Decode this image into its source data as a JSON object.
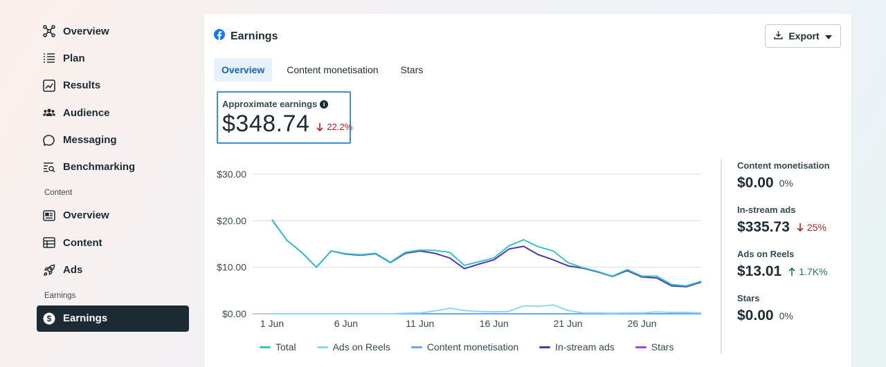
{
  "sidebar": {
    "items_top": [
      {
        "label": "Overview",
        "icon": "overview-network-icon"
      },
      {
        "label": "Plan",
        "icon": "list-icon"
      },
      {
        "label": "Results",
        "icon": "trend-chart-icon"
      },
      {
        "label": "Audience",
        "icon": "people-icon"
      },
      {
        "label": "Messaging",
        "icon": "chat-bubbles-icon"
      },
      {
        "label": "Benchmarking",
        "icon": "benchmark-search-icon"
      }
    ],
    "content_section": "Content",
    "items_content": [
      {
        "label": "Overview",
        "icon": "newspaper-icon"
      },
      {
        "label": "Content",
        "icon": "table-icon"
      },
      {
        "label": "Ads",
        "icon": "rocket-icon"
      }
    ],
    "earnings_section": "Earnings",
    "active_item": {
      "label": "Earnings",
      "icon": "dollar-circle-icon"
    }
  },
  "card": {
    "title": "Earnings",
    "title_icon": "facebook-icon",
    "export_label": "Export",
    "tabs": [
      {
        "label": "Overview",
        "active": true
      },
      {
        "label": "Content monetisation",
        "active": false
      },
      {
        "label": "Stars",
        "active": false
      }
    ],
    "kpi": {
      "label": "Approximate earnings",
      "value": "$348.74",
      "delta": "22.2%",
      "direction": "down"
    }
  },
  "breakdown": [
    {
      "name": "Content monetisation",
      "amount": "$0.00",
      "pct": "0%",
      "direction": "none"
    },
    {
      "name": "In-stream ads",
      "amount": "$335.73",
      "pct": "25%",
      "direction": "down"
    },
    {
      "name": "Ads on Reels",
      "amount": "$13.01",
      "pct": "1.7K%",
      "direction": "up"
    },
    {
      "name": "Stars",
      "amount": "$0.00",
      "pct": "0%",
      "direction": "none"
    }
  ],
  "colors": {
    "total": "#36c3c6",
    "ads_on_reels": "#8fd6f2",
    "content_monetisation": "#6aa5ee",
    "in_stream_ads": "#4b3aa8",
    "stars": "#a443e0",
    "down": "#b11f1f",
    "up": "#1a7a4c",
    "active_nav": "#1c2b33"
  },
  "chart_data": {
    "type": "line",
    "x_tick_labels": [
      "1 Jun",
      "6 Jun",
      "11 Jun",
      "16 Jun",
      "21 Jun",
      "26 Jun"
    ],
    "y_tick_labels": [
      "$30.00",
      "$20.00",
      "$10.00",
      "$0.00"
    ],
    "ylim": [
      0,
      30
    ],
    "x": [
      "1 Jun",
      "2 Jun",
      "3 Jun",
      "4 Jun",
      "5 Jun",
      "6 Jun",
      "7 Jun",
      "8 Jun",
      "9 Jun",
      "10 Jun",
      "11 Jun",
      "12 Jun",
      "13 Jun",
      "14 Jun",
      "15 Jun",
      "16 Jun",
      "17 Jun",
      "18 Jun",
      "19 Jun",
      "20 Jun",
      "21 Jun",
      "22 Jun",
      "23 Jun",
      "24 Jun",
      "25 Jun",
      "26 Jun",
      "27 Jun",
      "28 Jun",
      "29 Jun",
      "30 Jun"
    ],
    "grid": true,
    "legend": "bottom",
    "series": [
      {
        "name": "Total",
        "color_key": "total",
        "values": [
          20.2,
          15.8,
          13.2,
          10.0,
          13.5,
          12.9,
          12.7,
          13.0,
          11.1,
          13.2,
          13.7,
          13.6,
          13.2,
          10.4,
          11.2,
          12.0,
          14.6,
          15.9,
          14.4,
          13.5,
          11.0,
          9.9,
          9.1,
          8.1,
          9.5,
          8.1,
          8.1,
          6.3,
          6.0,
          7.0
        ]
      },
      {
        "name": "Ads on Reels",
        "color_key": "ads_on_reels",
        "values": [
          0,
          0,
          0,
          0,
          0,
          0,
          0,
          0,
          0,
          0.1,
          0.2,
          0.6,
          1.2,
          0.7,
          0.5,
          0.4,
          0.5,
          1.7,
          1.6,
          1.9,
          0.7,
          0.2,
          0.2,
          0.1,
          0.2,
          0.2,
          0.4,
          0.3,
          0.3,
          0.2
        ]
      },
      {
        "name": "Content monetisation",
        "color_key": "content_monetisation",
        "values": [
          0,
          0,
          0,
          0,
          0,
          0,
          0,
          0,
          0,
          0,
          0,
          0,
          0,
          0,
          0,
          0,
          0,
          0,
          0,
          0,
          0,
          0,
          0,
          0,
          0,
          0,
          0,
          0,
          0,
          0
        ]
      },
      {
        "name": "In-stream ads",
        "color_key": "in_stream_ads",
        "values": [
          20.2,
          15.8,
          13.2,
          10.0,
          13.5,
          12.8,
          12.6,
          12.9,
          11.0,
          13.0,
          13.5,
          13.0,
          12.0,
          9.7,
          10.7,
          11.6,
          13.9,
          14.5,
          12.7,
          11.6,
          10.3,
          9.8,
          9.0,
          8.0,
          9.3,
          7.9,
          7.7,
          6.0,
          5.8,
          6.8
        ]
      },
      {
        "name": "Stars",
        "color_key": "stars",
        "values": [
          0,
          0,
          0,
          0,
          0,
          0,
          0,
          0,
          0,
          0,
          0,
          0,
          0,
          0,
          0,
          0,
          0,
          0,
          0,
          0,
          0,
          0,
          0,
          0,
          0,
          0,
          0,
          0,
          0,
          0
        ]
      }
    ]
  }
}
